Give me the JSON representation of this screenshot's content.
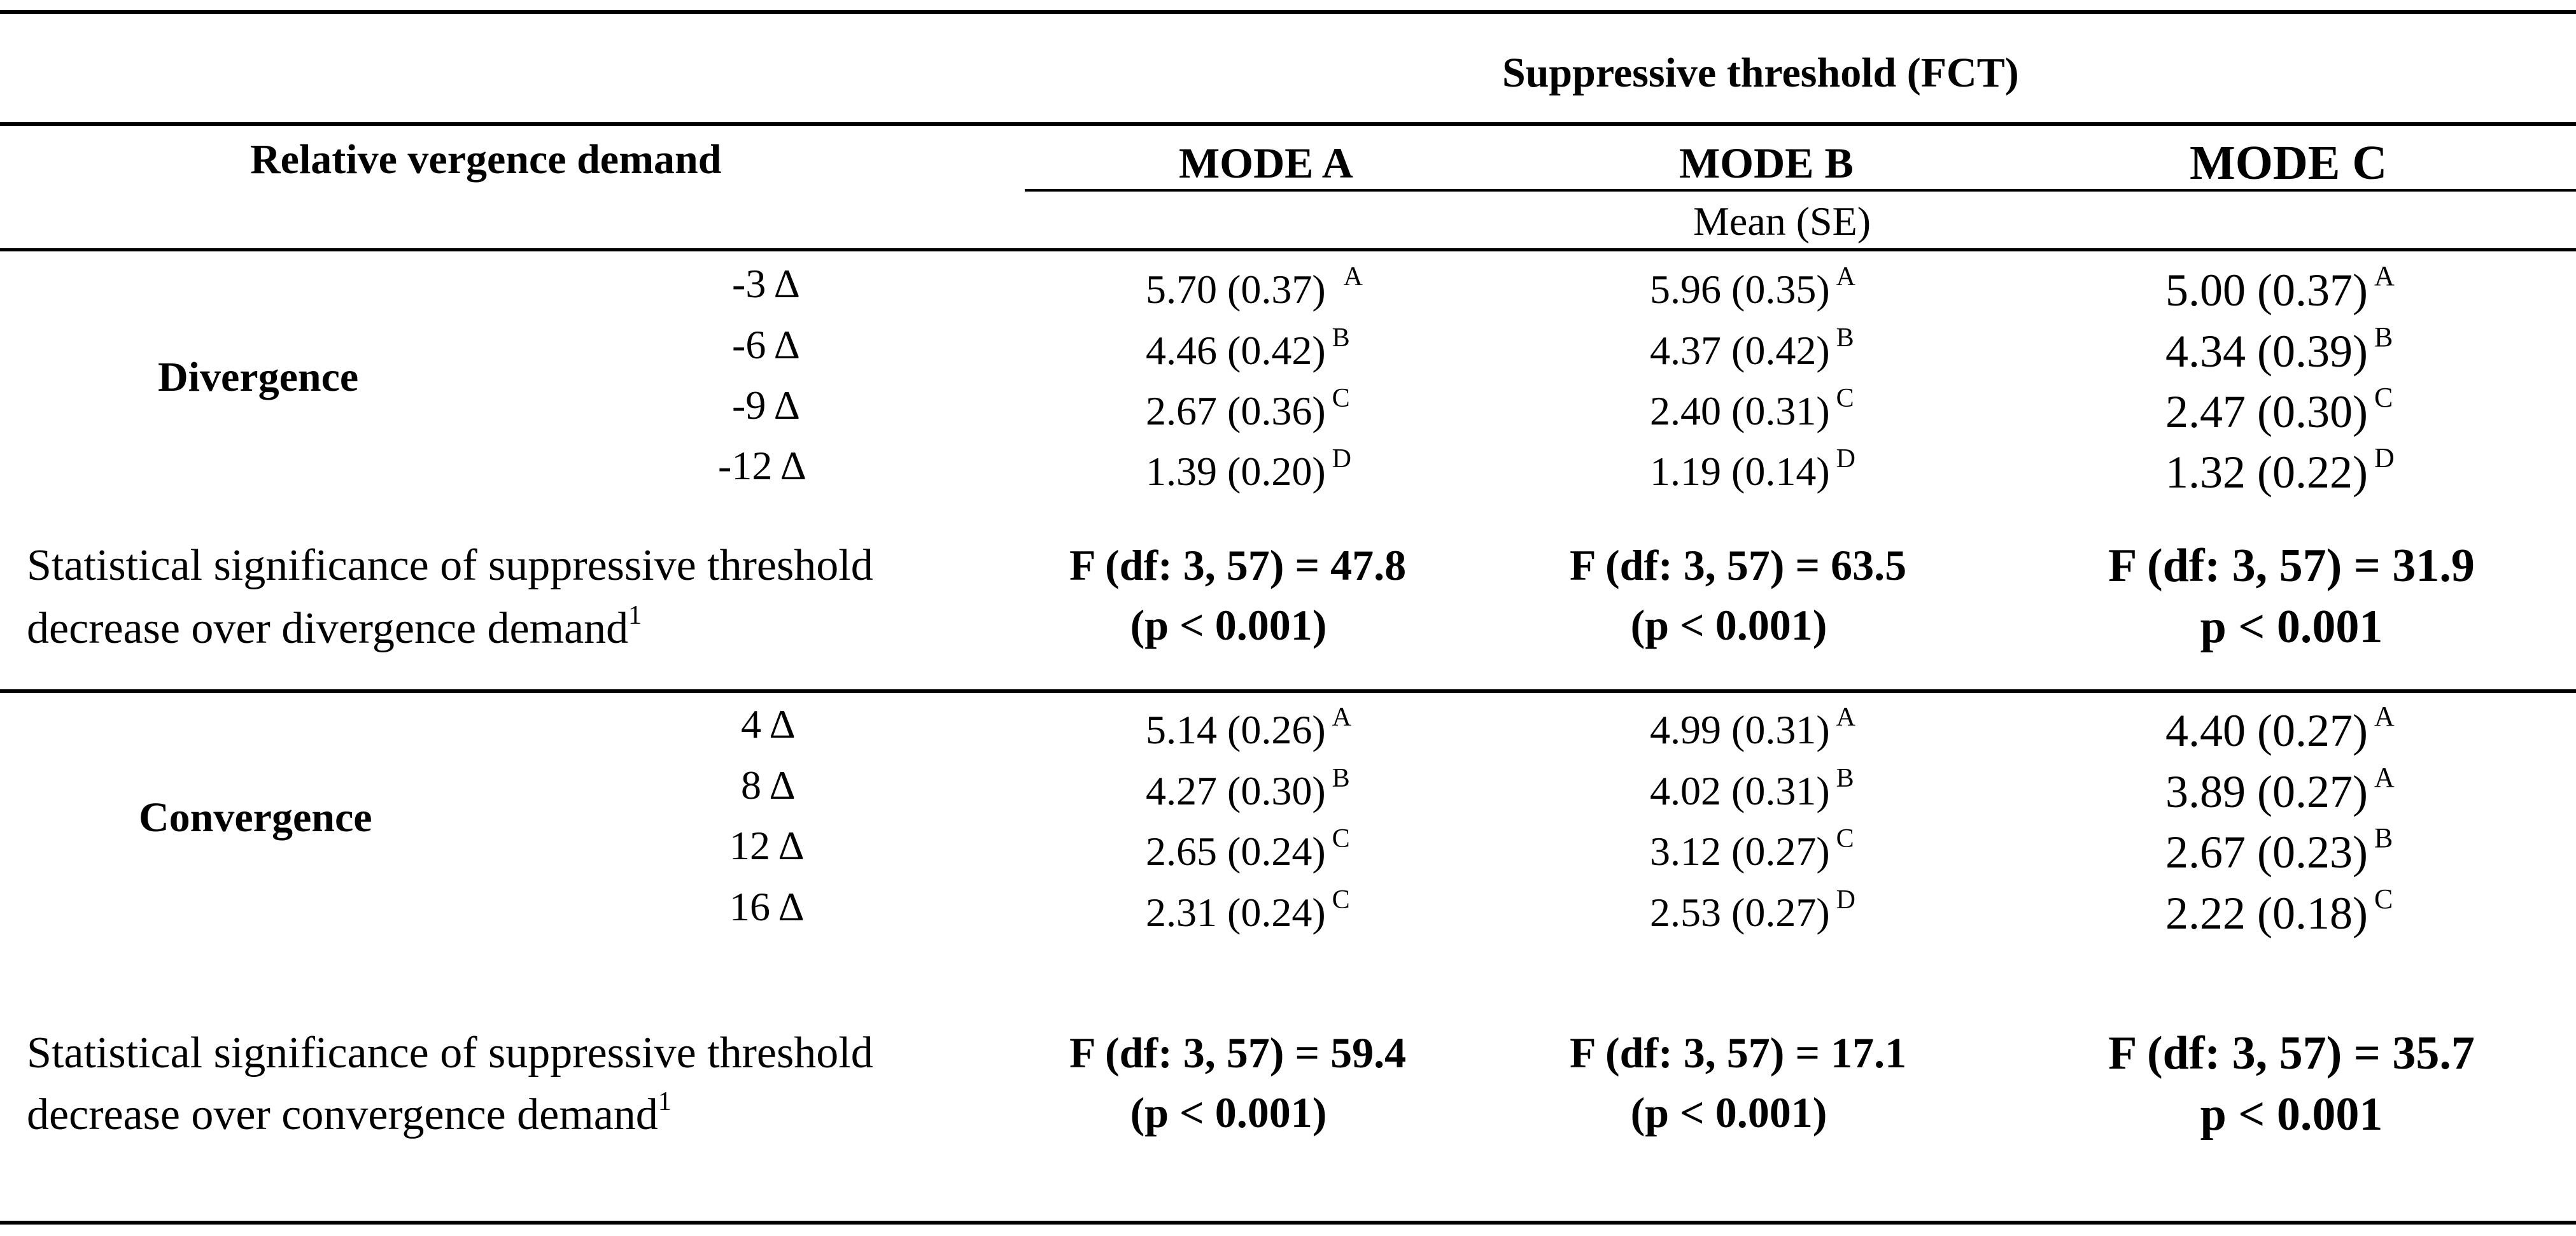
{
  "header": {
    "supertitle": "Suppressive threshold (FCT)",
    "row_header": "Relative vergence demand",
    "modes": [
      "MODE A",
      "MODE B",
      "MODE C"
    ],
    "subheader": "Mean (SE)"
  },
  "divergence": {
    "label": "Divergence",
    "demands": [
      "-3  Δ",
      "-6  Δ",
      "-9  Δ",
      "-12  Δ"
    ],
    "mode_a": [
      [
        "5.70 (0.37)",
        "A"
      ],
      [
        "4.46 (0.42)",
        "B"
      ],
      [
        "2.67 (0.36)",
        "C"
      ],
      [
        "1.39 (0.20)",
        "D"
      ]
    ],
    "mode_b": [
      [
        "5.96 (0.35)",
        "A"
      ],
      [
        "4.37 (0.42)",
        "B"
      ],
      [
        "2.40 (0.31)",
        "C"
      ],
      [
        "1.19 (0.14)",
        "D"
      ]
    ],
    "mode_c": [
      [
        "5.00 (0.37)",
        "A"
      ],
      [
        "4.34 (0.39)",
        "B"
      ],
      [
        "2.47 (0.30)",
        "C"
      ],
      [
        "1.32 (0.22)",
        "D"
      ]
    ],
    "stat_label_line1": "Statistical significance of suppressive threshold",
    "stat_label_line2": "decrease over divergence demand",
    "stat_label_sup": "1",
    "stats": [
      [
        "F (df: 3, 57) = 47.8",
        "(p < 0.001)"
      ],
      [
        "F (df: 3, 57) = 63.5",
        "(p < 0.001)"
      ],
      [
        "F (df: 3, 57) = 31.9",
        "p < 0.001"
      ]
    ]
  },
  "convergence": {
    "label": "Convergence",
    "demands": [
      "4  Δ",
      "8  Δ",
      "12  Δ",
      "16  Δ"
    ],
    "mode_a": [
      [
        "5.14 (0.26)",
        "A"
      ],
      [
        "4.27 (0.30)",
        "B"
      ],
      [
        "2.65 (0.24)",
        "C"
      ],
      [
        "2.31 (0.24)",
        "C"
      ]
    ],
    "mode_b": [
      [
        "4.99 (0.31)",
        "A"
      ],
      [
        "4.02 (0.31)",
        "B"
      ],
      [
        "3.12 (0.27)",
        "C"
      ],
      [
        "2.53 (0.27)",
        "D"
      ]
    ],
    "mode_c": [
      [
        "4.40 (0.27)",
        "A"
      ],
      [
        "3.89 (0.27)",
        "A"
      ],
      [
        "2.67 (0.23)",
        "B"
      ],
      [
        "2.22 (0.18)",
        "C"
      ]
    ],
    "stat_label_line1": "Statistical significance of suppressive threshold",
    "stat_label_line2": "decrease over convergence demand",
    "stat_label_sup": "1",
    "stats": [
      [
        "F (df: 3, 57) = 59.4",
        "(p < 0.001)"
      ],
      [
        "F (df: 3, 57) = 17.1",
        "(p < 0.001)"
      ],
      [
        "F (df: 3, 57) = 35.7",
        "p < 0.001"
      ]
    ]
  }
}
